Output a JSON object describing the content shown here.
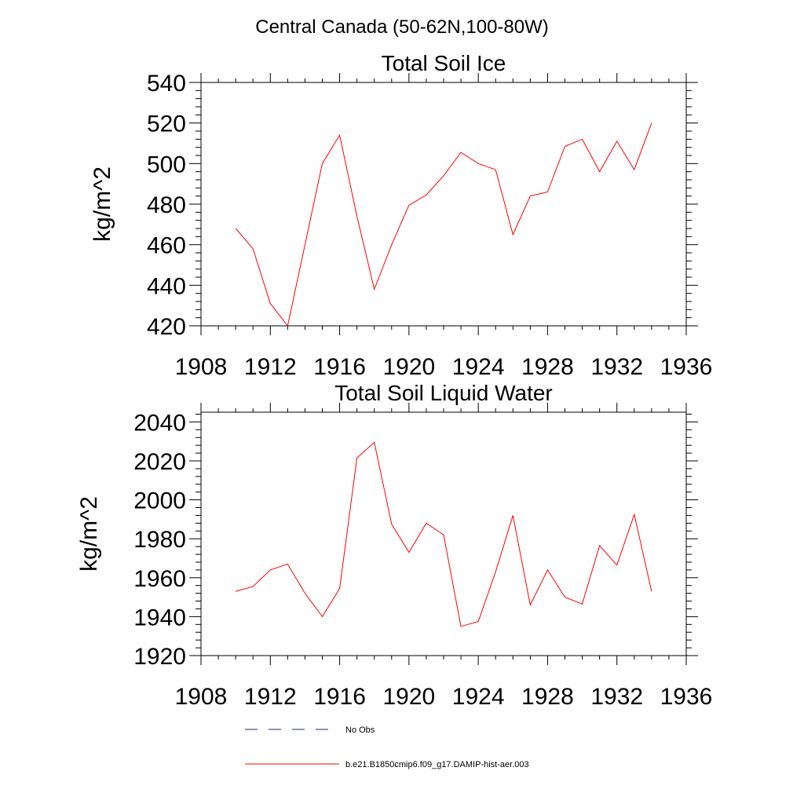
{
  "figure_title": "Central Canada (50-62N,100-80W)",
  "chart_data": [
    {
      "type": "line",
      "title": "Total Soil Ice",
      "xlabel": "",
      "ylabel": "kg/m^2",
      "xlim": [
        1908,
        1936
      ],
      "ylim": [
        420,
        540
      ],
      "x_ticks": [
        1908,
        1912,
        1916,
        1920,
        1924,
        1928,
        1932,
        1936
      ],
      "y_ticks": [
        420,
        440,
        460,
        480,
        500,
        520,
        540
      ],
      "grid": false,
      "series": [
        {
          "name": "b.e21.B1850cmip6.f09_g17.DAMIP-hist-aer.003",
          "color": "#ff0000",
          "x": [
            1910,
            1911,
            1912,
            1913,
            1914,
            1915,
            1916,
            1917,
            1918,
            1919,
            1920,
            1921,
            1922,
            1923,
            1924,
            1925,
            1926,
            1927,
            1928,
            1929,
            1930,
            1931,
            1932,
            1933,
            1934
          ],
          "values": [
            468,
            458,
            431,
            420,
            460,
            500,
            514,
            474,
            438,
            460,
            479.5,
            484.5,
            494,
            505.5,
            500,
            497,
            465,
            484,
            486,
            508.5,
            512,
            496,
            511,
            497,
            520
          ]
        }
      ]
    },
    {
      "type": "line",
      "title": "Total Soil Liquid Water",
      "xlabel": "",
      "ylabel": "kg/m^2",
      "xlim": [
        1908,
        1936
      ],
      "ylim": [
        1920,
        2045
      ],
      "x_ticks": [
        1908,
        1912,
        1916,
        1920,
        1924,
        1928,
        1932,
        1936
      ],
      "y_ticks": [
        1920,
        1940,
        1960,
        1980,
        2000,
        2020,
        2040
      ],
      "grid": false,
      "series": [
        {
          "name": "b.e21.B1850cmip6.f09_g17.DAMIP-hist-aer.003",
          "color": "#ff0000",
          "x": [
            1910,
            1911,
            1912,
            1913,
            1914,
            1915,
            1916,
            1917,
            1918,
            1919,
            1920,
            1921,
            1922,
            1923,
            1924,
            1925,
            1926,
            1927,
            1928,
            1929,
            1930,
            1931,
            1932,
            1933,
            1934
          ],
          "values": [
            1953,
            1955.5,
            1964,
            1967,
            1952,
            1940,
            1954.5,
            2021.5,
            2029.5,
            1987.5,
            1973,
            1988,
            1982,
            1935,
            1937.5,
            1963,
            1992,
            1946,
            1964,
            1950,
            1946.5,
            1976.5,
            1966.5,
            1992.5,
            1953
          ]
        }
      ]
    }
  ],
  "legend": {
    "placement": "bottom-left",
    "entries": [
      {
        "label": "No Obs",
        "color": "#1a2a6c",
        "dash": "dashed"
      },
      {
        "label": "b.e21.B1850cmip6.f09_g17.DAMIP-hist-aer.003",
        "color": "#ff0000",
        "dash": "solid"
      }
    ]
  }
}
